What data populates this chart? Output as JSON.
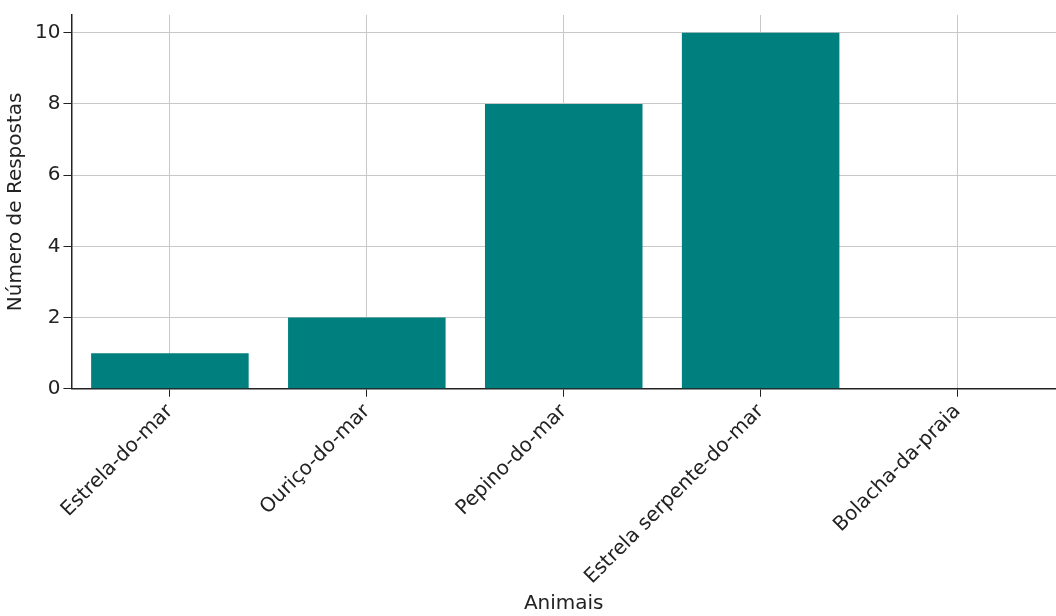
{
  "chart_data": {
    "type": "bar",
    "xlabel": "Animais",
    "ylabel": "Número de Respostas",
    "categories": [
      "Estrela-do-mar",
      "Ouriço-do-mar",
      "Pepino-do-mar",
      "Estrela serpente-do-mar",
      "Bolacha-da-praia"
    ],
    "values": [
      1,
      2,
      8,
      10,
      0
    ],
    "color": "#007f7f",
    "ylim": [
      0,
      10.5
    ],
    "yticks": [
      0,
      2,
      4,
      6,
      8,
      10
    ],
    "grid": true,
    "legend": false
  }
}
